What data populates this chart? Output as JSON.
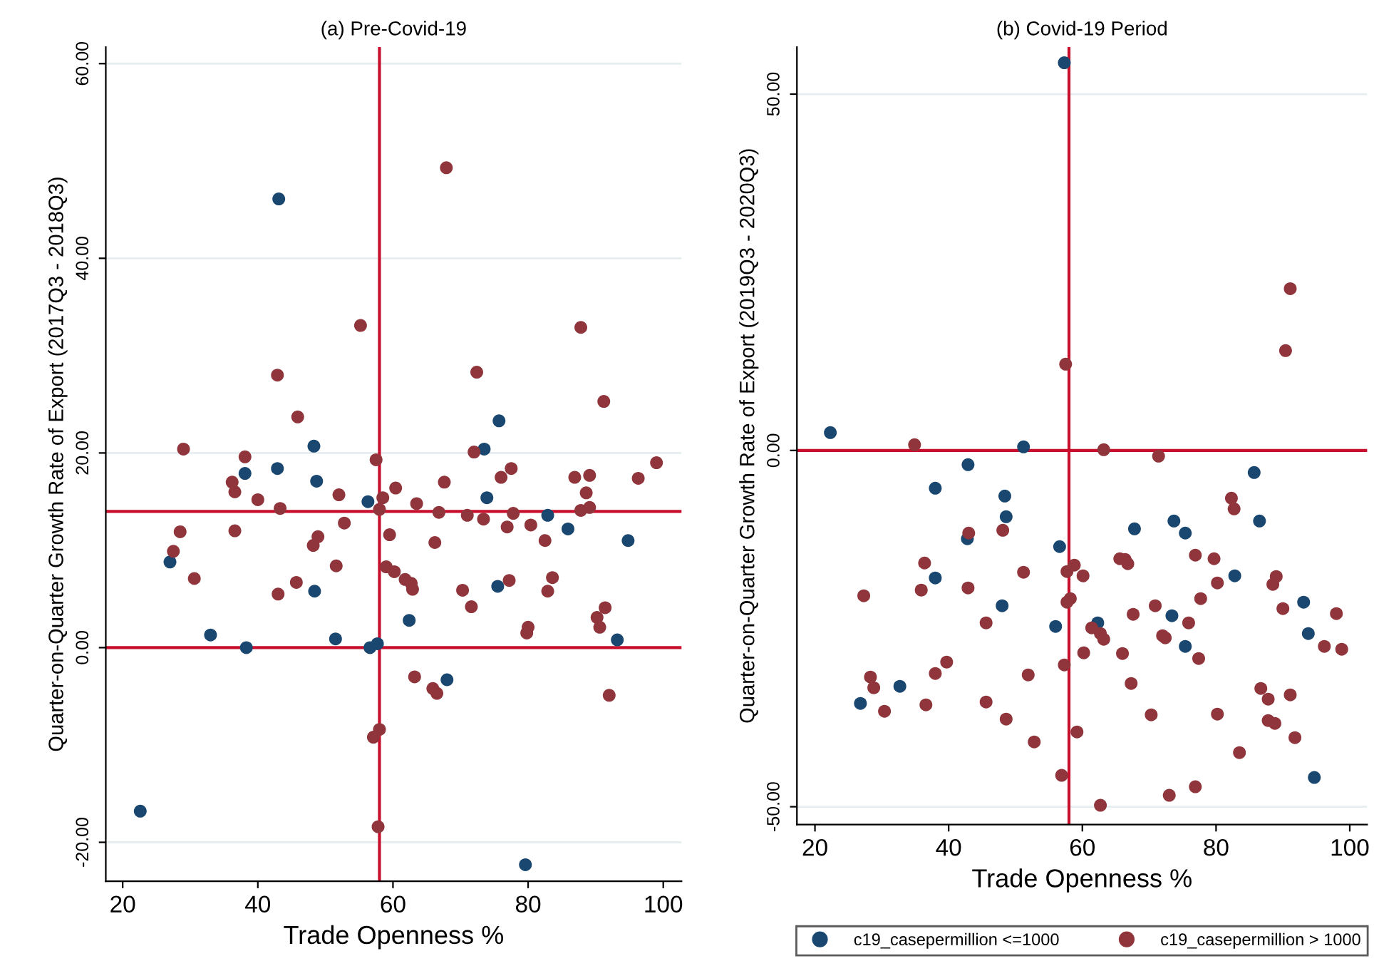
{
  "chart_data": [
    {
      "type": "scatter",
      "title": "(a) Pre-Covid-19",
      "xlabel": "Trade Openness %",
      "ylabel": "Quarter-on-Quarter Growth Rate of Export (2017Q3 - 2018Q3)",
      "xlim": [
        17.5,
        102.7
      ],
      "ylim": [
        -24,
        61.7
      ],
      "xticks": [
        20,
        40,
        60,
        80,
        100
      ],
      "yticks": [
        {
          "value": -20,
          "label": "-20.00"
        },
        {
          "value": 0,
          "label": "0.00"
        },
        {
          "value": 20,
          "label": "20.00"
        },
        {
          "value": 40,
          "label": "40.00"
        },
        {
          "value": 60,
          "label": "60.00"
        }
      ],
      "grid": "y",
      "marker": "circle",
      "ref_lines": [
        {
          "axis": "x",
          "value": 58,
          "color": "#c8102e"
        },
        {
          "axis": "y",
          "value": 14,
          "color": "#c8102e"
        },
        {
          "axis": "y",
          "value": 0,
          "color": "#c8102e"
        }
      ],
      "series": [
        {
          "color": "#1a476f",
          "x": [
            43.1,
            75.7,
            48.3,
            73.5,
            38.1,
            42.9,
            48.7,
            56.3,
            73.9,
            82.9,
            85.9,
            94.8,
            27.0,
            48.4,
            75.5,
            62.4,
            33.0,
            51.5,
            38.3,
            56.6,
            57.7,
            93.2,
            68.0,
            22.6,
            79.6
          ],
          "values": [
            46.1,
            23.3,
            20.7,
            20.4,
            17.9,
            18.4,
            17.1,
            15.0,
            15.4,
            13.6,
            12.2,
            11.0,
            8.8,
            5.8,
            6.3,
            2.8,
            1.3,
            0.9,
            0.0,
            0.0,
            0.4,
            0.8,
            -3.3,
            -16.8,
            -22.3
          ]
        },
        {
          "color": "#90353b",
          "x": [
            67.9,
            55.2,
            87.8,
            42.9,
            72.4,
            45.9,
            91.2,
            29.0,
            72.0,
            38.1,
            57.5,
            99.0,
            36.2,
            36.6,
            40.0,
            52.0,
            58.5,
            60.4,
            67.6,
            76.0,
            77.5,
            86.9,
            89.1,
            88.6,
            96.3,
            43.3,
            58.0,
            63.5,
            66.8,
            71.0,
            73.4,
            77.8,
            87.8,
            89.1,
            52.8,
            76.9,
            80.4,
            28.5,
            36.6,
            59.5,
            82.5,
            48.9,
            48.2,
            66.2,
            27.5,
            51.6,
            30.6,
            59.0,
            60.2,
            61.8,
            62.7,
            62.9,
            45.7,
            43.0,
            70.3,
            71.6,
            77.2,
            82.9,
            83.6,
            91.4,
            90.2,
            90.6,
            80.0,
            79.8,
            63.2,
            65.9,
            66.5,
            92.0,
            58.0,
            57.1,
            57.8
          ],
          "values": [
            49.3,
            33.1,
            32.9,
            28.0,
            28.3,
            23.7,
            25.3,
            20.4,
            20.1,
            19.6,
            19.3,
            19.0,
            17.0,
            16.0,
            15.2,
            15.7,
            15.4,
            16.4,
            17.0,
            17.5,
            18.4,
            17.5,
            17.7,
            15.9,
            17.4,
            14.3,
            14.2,
            14.8,
            13.9,
            13.6,
            13.2,
            13.8,
            14.1,
            14.4,
            12.8,
            12.4,
            12.6,
            11.9,
            12.0,
            11.6,
            11.0,
            11.4,
            10.5,
            10.8,
            9.9,
            8.4,
            7.1,
            8.3,
            7.8,
            7.0,
            6.6,
            6.0,
            6.7,
            5.5,
            5.9,
            4.2,
            6.9,
            5.8,
            7.2,
            4.1,
            3.1,
            2.1,
            2.1,
            1.5,
            -3.0,
            -4.2,
            -4.7,
            -4.9,
            -8.4,
            -9.2,
            -18.4
          ]
        }
      ]
    },
    {
      "type": "scatter",
      "title": "(b) Covid-19 Period",
      "xlabel": "Trade Openness %",
      "ylabel": "Quarter-on-Quarter Growth Rate of Export (2019Q3 - 2020Q3)",
      "xlim": [
        17.3,
        102.6
      ],
      "ylim": [
        -52.5,
        56.6
      ],
      "xticks": [
        20,
        40,
        60,
        80,
        100
      ],
      "yticks": [
        {
          "value": -50,
          "label": "-50.00"
        },
        {
          "value": 0,
          "label": "0.00"
        },
        {
          "value": 50,
          "label": "50.00"
        }
      ],
      "grid": "y",
      "marker": "circle",
      "legend": "bottom",
      "ref_lines": [
        {
          "axis": "x",
          "value": 58,
          "color": "#c8102e"
        },
        {
          "axis": "y",
          "value": 0,
          "color": "#c8102e"
        }
      ],
      "series": [
        {
          "name": "c19_casepermillion <=1000",
          "color": "#1a476f",
          "x": [
            57.3,
            22.3,
            51.2,
            42.9,
            85.7,
            38.0,
            48.4,
            48.6,
            86.5,
            73.7,
            75.4,
            67.8,
            42.8,
            56.6,
            38.0,
            82.8,
            48.0,
            93.1,
            73.4,
            56.0,
            62.3,
            93.8,
            75.4,
            32.7,
            26.8,
            94.7
          ],
          "values": [
            54.4,
            2.5,
            0.5,
            -2.0,
            -3.1,
            -5.3,
            -6.4,
            -9.3,
            -9.9,
            -9.9,
            -11.6,
            -11.0,
            -12.4,
            -13.5,
            -17.9,
            -17.6,
            -21.8,
            -21.3,
            -23.2,
            -24.7,
            -24.2,
            -25.7,
            -27.5,
            -33.1,
            -35.5,
            -45.9
          ]
        },
        {
          "name": "c19_casepermillion > 1000",
          "color": "#90353b",
          "x": [
            91.1,
            90.4,
            57.5,
            34.9,
            63.2,
            71.4,
            82.3,
            82.7,
            48.1,
            43.0,
            65.6,
            66.4,
            66.8,
            76.9,
            79.7,
            36.4,
            58.8,
            57.7,
            51.2,
            60.1,
            89.0,
            88.5,
            80.2,
            27.3,
            35.9,
            42.9,
            58.2,
            57.7,
            77.7,
            70.9,
            90.0,
            98.0,
            67.6,
            75.9,
            45.6,
            61.4,
            62.7,
            63.2,
            72.0,
            72.4,
            96.2,
            98.8,
            60.2,
            66.0,
            77.4,
            39.7,
            57.3,
            28.3,
            38.0,
            51.9,
            28.8,
            67.3,
            86.7,
            87.8,
            91.1,
            36.6,
            45.6,
            30.4,
            70.3,
            80.2,
            48.6,
            87.8,
            88.8,
            59.2,
            91.8,
            52.8,
            83.5,
            56.9,
            76.9,
            73.0,
            62.7
          ],
          "values": [
            22.7,
            14.0,
            12.1,
            0.8,
            0.1,
            -0.8,
            -6.7,
            -8.2,
            -11.2,
            -11.6,
            -15.2,
            -15.3,
            -15.9,
            -14.7,
            -15.2,
            -15.8,
            -16.1,
            -17.0,
            -17.1,
            -17.6,
            -17.7,
            -18.8,
            -18.6,
            -20.4,
            -19.6,
            -19.3,
            -20.8,
            -21.3,
            -20.8,
            -21.8,
            -22.2,
            -22.9,
            -23.0,
            -24.2,
            -24.2,
            -24.9,
            -25.7,
            -26.5,
            -26.0,
            -26.3,
            -27.5,
            -27.9,
            -28.4,
            -28.5,
            -29.2,
            -29.7,
            -30.1,
            -31.8,
            -31.3,
            -31.5,
            -33.3,
            -32.7,
            -33.4,
            -34.9,
            -34.3,
            -35.7,
            -35.3,
            -36.6,
            -37.1,
            -37.0,
            -37.7,
            -37.9,
            -38.3,
            -39.5,
            -40.3,
            -40.9,
            -42.4,
            -45.6,
            -47.2,
            -48.4,
            -49.8
          ]
        }
      ]
    }
  ]
}
